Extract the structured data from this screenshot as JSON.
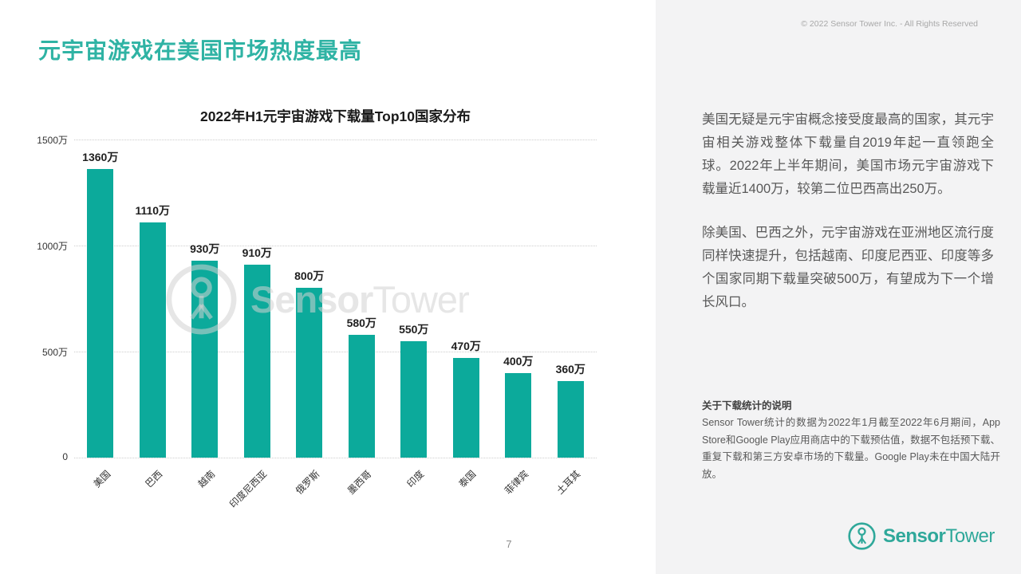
{
  "slide": {
    "title": "元宇宙游戏在美国市场热度最高",
    "page_number": "7",
    "copyright": "© 2022 Sensor Tower Inc. - All Rights Reserved"
  },
  "chart_data": {
    "type": "bar",
    "title": "2022年H1元宇宙游戏下载量Top10国家分布",
    "categories": [
      "美国",
      "巴西",
      "越南",
      "印度尼西亚",
      "俄罗斯",
      "墨西哥",
      "印度",
      "泰国",
      "菲律宾",
      "土耳其"
    ],
    "values": [
      1360,
      1110,
      930,
      910,
      800,
      580,
      550,
      470,
      400,
      360
    ],
    "value_labels": [
      "1360万",
      "1110万",
      "930万",
      "910万",
      "800万",
      "580万",
      "550万",
      "470万",
      "400万",
      "360万"
    ],
    "unit": "万",
    "ylim": [
      0,
      1500
    ],
    "yticks": [
      0,
      500,
      1000,
      1500
    ],
    "ytick_labels": [
      "0",
      "500万",
      "1000万",
      "1500万"
    ],
    "xlabel": "",
    "ylabel": "",
    "grid": "horizontal-dotted",
    "legend": "none",
    "bar_color": "#0caa9b",
    "watermark": {
      "bold": "Sensor",
      "regular": "Tower"
    }
  },
  "sidebar": {
    "paragraphs": [
      "美国无疑是元宇宙概念接受度最高的国家，其元宇宙相关游戏整体下载量自2019年起一直领跑全球。2022年上半年期间，美国市场元宇宙游戏下载量近1400万，较第二位巴西高出250万。",
      "除美国、巴西之外，元宇宙游戏在亚洲地区流行度同样快速提升，包括越南、印度尼西亚、印度等多个国家同期下载量突破500万，有望成为下一个增长风口。"
    ],
    "note_title": "关于下载统计的说明",
    "note_body": "Sensor Tower统计的数据为2022年1月截至2022年6月期间，App Store和Google Play应用商店中的下载预估值，数据不包括预下载、重复下载和第三方安卓市场的下载量。Google Play未在中国大陆开放。",
    "logo": {
      "bold": "Sensor",
      "regular": "Tower"
    }
  },
  "colors": {
    "title_teal": "#2fb3a4",
    "bar_teal": "#0caa9b",
    "logo_teal": "#2fa89a",
    "panel_bg": "#f3f3f4",
    "body_text": "#595959",
    "grid_gray": "#cdcdcd"
  }
}
